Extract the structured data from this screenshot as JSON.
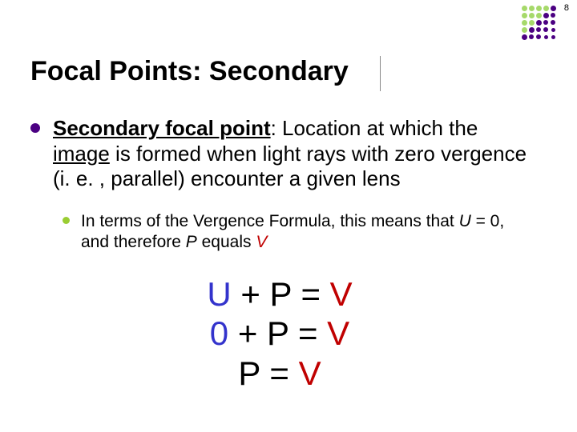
{
  "page_number": "8",
  "title": "Focal Points: Secondary",
  "colors": {
    "bullet_l1": "#4b0082",
    "bullet_l2": "#9acd32",
    "U": "#3333cc",
    "P": "#000000",
    "V": "#c00000",
    "text": "#000000",
    "background": "#ffffff"
  },
  "dot_grid": {
    "rows": 5,
    "cols": 5,
    "colors": [
      [
        "#a6d96a",
        "#a6d96a",
        "#a6d96a",
        "#a6d96a",
        "#4b0082"
      ],
      [
        "#a6d96a",
        "#a6d96a",
        "#a6d96a",
        "#4b0082",
        "#4b0082"
      ],
      [
        "#a6d96a",
        "#a6d96a",
        "#4b0082",
        "#4b0082",
        "#4b0082"
      ],
      [
        "#a6d96a",
        "#4b0082",
        "#4b0082",
        "#4b0082",
        "#4b0082"
      ],
      [
        "#4b0082",
        "#4b0082",
        "#4b0082",
        "#4b0082",
        "#4b0082"
      ]
    ],
    "sizes": [
      [
        7,
        7,
        7,
        7,
        7
      ],
      [
        7,
        7,
        7,
        7,
        6
      ],
      [
        7,
        7,
        7,
        6,
        6
      ],
      [
        7,
        7,
        6,
        6,
        5
      ],
      [
        7,
        6,
        6,
        5,
        5
      ]
    ]
  },
  "body": {
    "term": "Secondary focal point",
    "term_after": ": Location at which the ",
    "image_word": "image",
    "rest": " is formed when light rays with zero vergence (i. e. , parallel) encounter a given lens",
    "sub_pre": "In terms of the Vergence Formula, this means that ",
    "sub_U": "U",
    "sub_mid1": " = 0, and therefore ",
    "sub_P": "P",
    "sub_mid2": " equals ",
    "sub_V": "V"
  },
  "equations": {
    "r1": {
      "U": "U",
      "plus": " + ",
      "P": "P",
      "eq": " = ",
      "V": "V"
    },
    "r2": {
      "U": "0",
      "plus": " + ",
      "P": "P",
      "eq": " = ",
      "V": "V"
    },
    "r3": {
      "P": "P",
      "eq": " = ",
      "V": "V"
    }
  },
  "fonts": {
    "title_pt": 34,
    "body_pt": 26,
    "sub_pt": 21,
    "eq_pt": 42,
    "page_num_pt": 11
  }
}
